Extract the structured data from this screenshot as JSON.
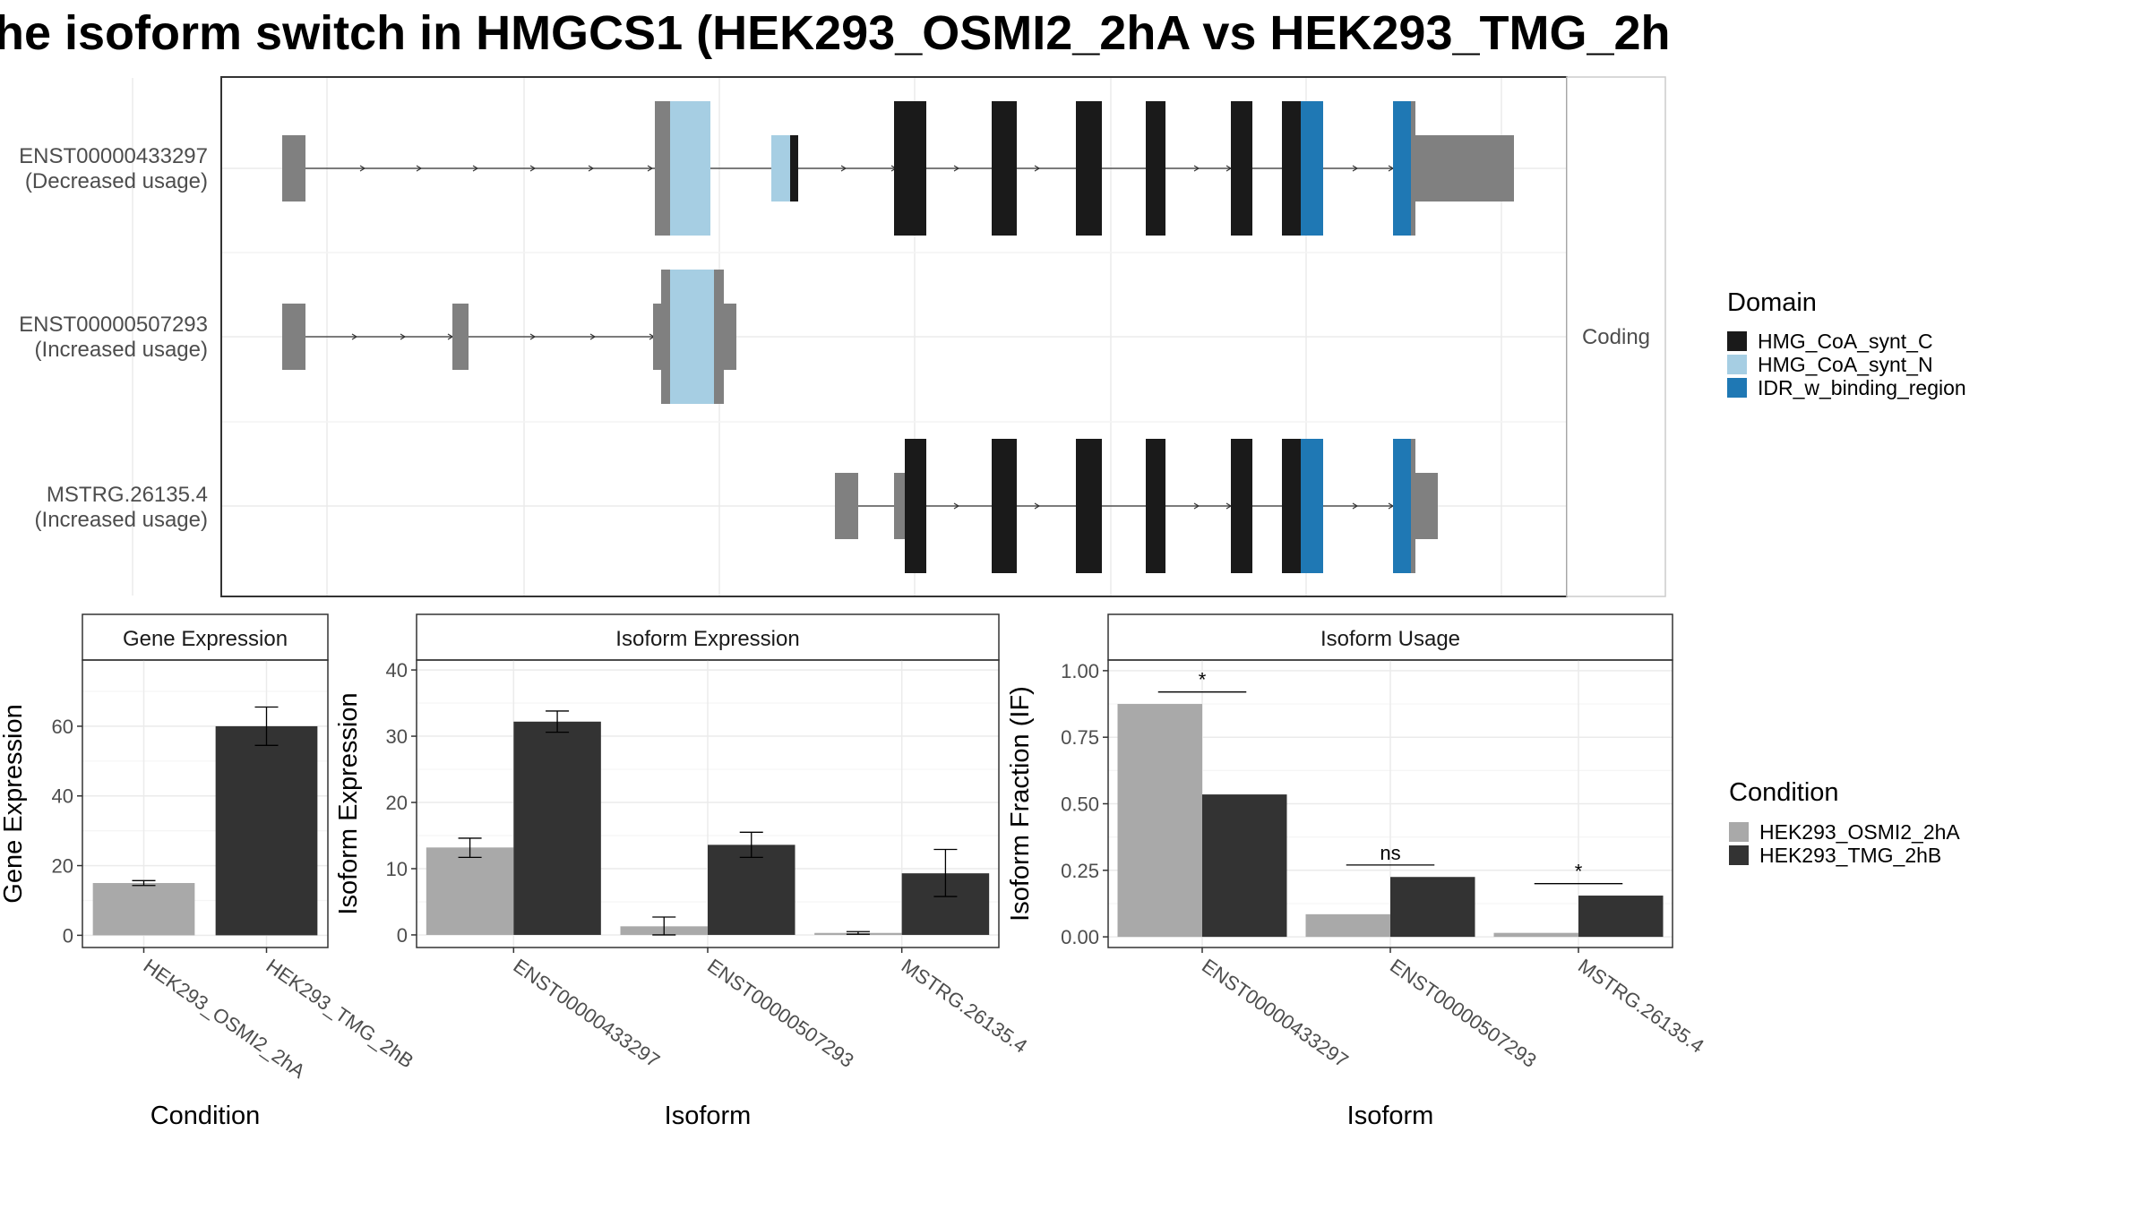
{
  "title": "he isoform switch in HMGCS1 (HEK293_OSMI2_2hA vs HEK293_TMG_2h",
  "colors": {
    "HMG_CoA_synt_C": "#1a1a1a",
    "HMG_CoA_synt_N": "#a6cee3",
    "IDR_w_binding_region": "#1f78b4",
    "utr": "#808080",
    "cond_a": "#a9a9a9",
    "cond_b": "#333333"
  },
  "structure": {
    "strip_label": "Coding",
    "isoforms": [
      {
        "id": "ENST00000433297",
        "usage": "(Decreased usage)"
      },
      {
        "id": "ENST00000507293",
        "usage": "(Increased usage)"
      },
      {
        "id": "MSTRG.26135.4",
        "usage": "(Increased usage)"
      }
    ]
  },
  "legend_domain": {
    "title": "Domain",
    "items": [
      "HMG_CoA_synt_C",
      "HMG_CoA_synt_N",
      "IDR_w_binding_region"
    ]
  },
  "legend_condition": {
    "title": "Condition",
    "items": [
      "HEK293_OSMI2_2hA",
      "HEK293_TMG_2hB"
    ]
  },
  "chart_data": [
    {
      "type": "bar",
      "strip": "Gene Expression",
      "xlabel": "Condition",
      "ylabel": "Gene Expression",
      "categories": [
        "HEK293_OSMI2_2hA",
        "HEK293_TMG_2hB"
      ],
      "values": [
        15,
        60
      ],
      "err_low": [
        14.3,
        54.5
      ],
      "err_high": [
        15.7,
        65.5
      ],
      "ylim": [
        -3.5,
        79
      ],
      "yticks": [
        "0",
        "20",
        "40",
        "60"
      ]
    },
    {
      "type": "bar",
      "strip": "Isoform Expression",
      "xlabel": "Isoform",
      "ylabel": "Isoform Expression",
      "categories": [
        "ENST00000433297",
        "ENST00000507293",
        "MSTRG.26135.4"
      ],
      "series": [
        {
          "name": "HEK293_OSMI2_2hA",
          "values": [
            13.2,
            1.3,
            0.3
          ],
          "err_low": [
            11.7,
            0.0,
            0.1
          ],
          "err_high": [
            14.6,
            2.7,
            0.5
          ]
        },
        {
          "name": "HEK293_TMG_2hB",
          "values": [
            32.2,
            13.6,
            9.3
          ],
          "err_low": [
            30.6,
            11.7,
            5.8
          ],
          "err_high": [
            33.8,
            15.5,
            12.9
          ]
        }
      ],
      "ylim": [
        -1.9,
        41.5
      ],
      "yticks": [
        "0",
        "10",
        "20",
        "30",
        "40"
      ]
    },
    {
      "type": "bar",
      "strip": "Isoform Usage",
      "xlabel": "Isoform",
      "ylabel": "Isoform Fraction (IF)",
      "categories": [
        "ENST00000433297",
        "ENST00000507293",
        "MSTRG.26135.4"
      ],
      "series": [
        {
          "name": "HEK293_OSMI2_2hA",
          "values": [
            0.875,
            0.085,
            0.015
          ]
        },
        {
          "name": "HEK293_TMG_2hB",
          "values": [
            0.535,
            0.225,
            0.155
          ]
        }
      ],
      "significance": [
        "*",
        "ns",
        "*"
      ],
      "sig_level": [
        0.92,
        0.27,
        0.2
      ],
      "ylim": [
        -0.04,
        1.04
      ],
      "yticks": [
        "0.00",
        "0.25",
        "0.50",
        "0.75",
        "1.00"
      ]
    }
  ]
}
